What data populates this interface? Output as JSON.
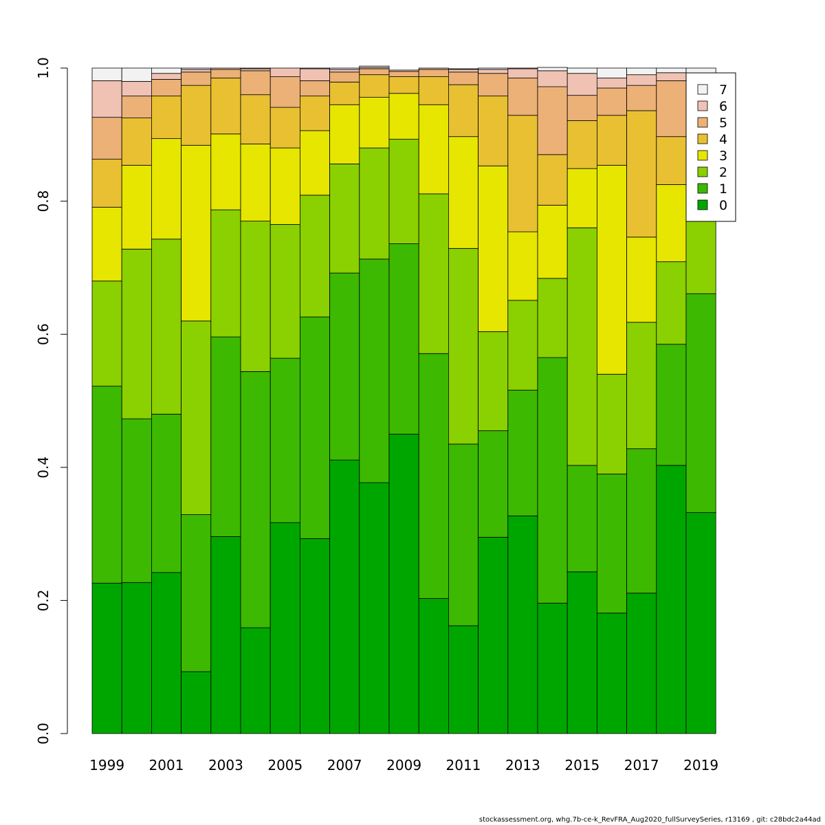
{
  "chart_data": {
    "type": "bar",
    "stacked": true,
    "categories": [
      "1999",
      "2000",
      "2001",
      "2002",
      "2003",
      "2004",
      "2005",
      "2006",
      "2007",
      "2008",
      "2009",
      "2010",
      "2011",
      "2012",
      "2013",
      "2014",
      "2015",
      "2016",
      "2017",
      "2018",
      "2019"
    ],
    "x_tick_labels": [
      "1999",
      "2001",
      "2003",
      "2005",
      "2007",
      "2009",
      "2011",
      "2013",
      "2015",
      "2017",
      "2019"
    ],
    "y_tick_labels": [
      "0.0",
      "0.2",
      "0.4",
      "0.6",
      "0.8",
      "1.0"
    ],
    "ylim": [
      0,
      1
    ],
    "grid": false,
    "legend_position": "top-right",
    "series": [
      {
        "name": "0",
        "color": "#00a600",
        "values": [
          0.226,
          0.227,
          0.242,
          0.093,
          0.296,
          0.159,
          0.317,
          0.293,
          0.411,
          0.377,
          0.45,
          0.203,
          0.162,
          0.295,
          0.327,
          0.196,
          0.243,
          0.181,
          0.211,
          0.403,
          0.332
        ]
      },
      {
        "name": "1",
        "color": "#3cb900",
        "values": [
          0.296,
          0.246,
          0.238,
          0.236,
          0.3,
          0.385,
          0.247,
          0.333,
          0.281,
          0.336,
          0.286,
          0.368,
          0.273,
          0.16,
          0.189,
          0.369,
          0.16,
          0.209,
          0.217,
          0.182,
          0.329
        ]
      },
      {
        "name": "2",
        "color": "#8bd000",
        "values": [
          0.158,
          0.255,
          0.263,
          0.291,
          0.191,
          0.226,
          0.201,
          0.183,
          0.164,
          0.167,
          0.157,
          0.24,
          0.294,
          0.149,
          0.135,
          0.119,
          0.357,
          0.15,
          0.19,
          0.124,
          0.109
        ]
      },
      {
        "name": "3",
        "color": "#e6e600",
        "values": [
          0.111,
          0.126,
          0.151,
          0.264,
          0.114,
          0.116,
          0.115,
          0.097,
          0.089,
          0.076,
          0.069,
          0.134,
          0.168,
          0.249,
          0.103,
          0.11,
          0.089,
          0.314,
          0.128,
          0.116,
          0.06
        ]
      },
      {
        "name": "4",
        "color": "#e8c032",
        "values": [
          0.072,
          0.071,
          0.064,
          0.09,
          0.084,
          0.074,
          0.061,
          0.052,
          0.034,
          0.034,
          0.025,
          0.042,
          0.078,
          0.105,
          0.175,
          0.076,
          0.072,
          0.075,
          0.19,
          0.072,
          0.07
        ]
      },
      {
        "name": "5",
        "color": "#ecb176",
        "values": [
          0.063,
          0.033,
          0.025,
          0.02,
          0.013,
          0.036,
          0.046,
          0.023,
          0.015,
          0.009,
          0.008,
          0.011,
          0.019,
          0.034,
          0.056,
          0.102,
          0.038,
          0.041,
          0.038,
          0.084,
          0.06
        ]
      },
      {
        "name": "6",
        "color": "#efc2b3",
        "values": [
          0.055,
          0.022,
          0.009,
          0.004,
          0.002,
          0.003,
          0.013,
          0.018,
          0.004,
          0.002,
          0.002,
          0.002,
          0.004,
          0.006,
          0.014,
          0.024,
          0.033,
          0.015,
          0.016,
          0.012,
          0.03
        ]
      },
      {
        "name": "7",
        "color": "#f2f2f2",
        "values": [
          0.019,
          0.02,
          0.008,
          0.002,
          0.0,
          0.001,
          0.0,
          0.001,
          0.002,
          0.002,
          0.0,
          0.0,
          0.001,
          0.002,
          0.001,
          0.005,
          0.008,
          0.015,
          0.01,
          0.007,
          0.01
        ]
      }
    ]
  },
  "footer": {
    "text": "stockassessment.org, whg.7b-ce-k_RevFRA_Aug2020_fullSurveySeries, r13169 , git: c28bdc2a44ad"
  }
}
